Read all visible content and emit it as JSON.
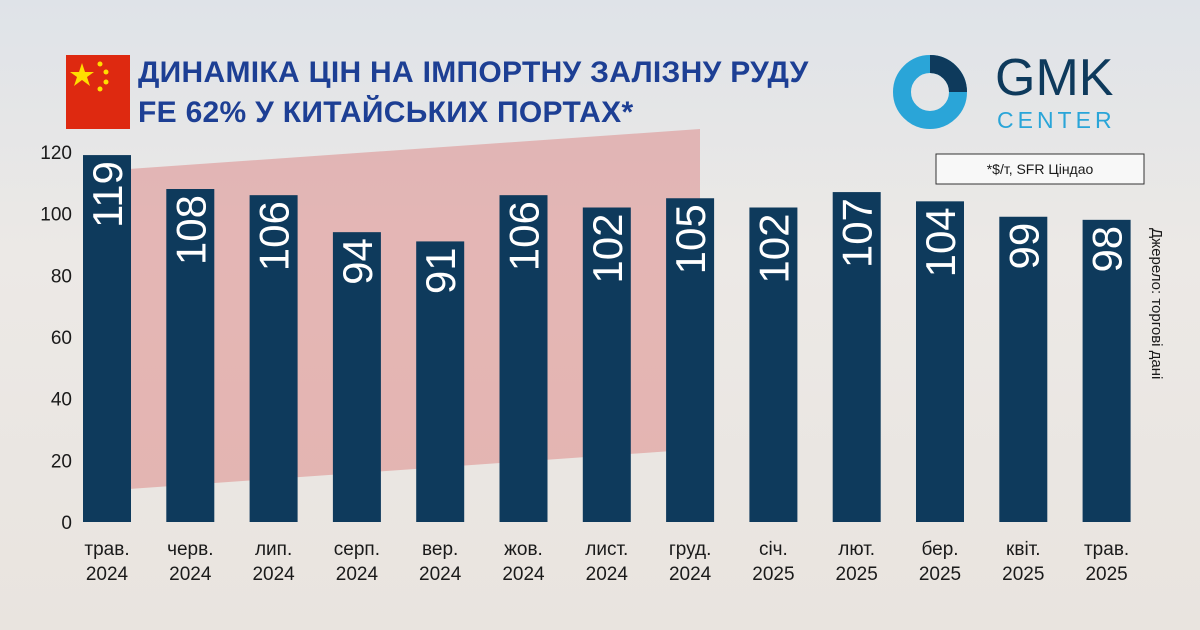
{
  "chart_data": {
    "type": "bar",
    "title": [
      "ДИНАМІКА ЦІН НА ІМПОРТНУ ЗАЛІЗНУ РУДУ",
      "FE 62% У КИТАЙСЬКИХ ПОРТАХ*"
    ],
    "note": "*$/т,  SFR Ціндао",
    "source": "Джерело: торгові дані",
    "logo": [
      "GMK",
      "CENTER"
    ],
    "categories": [
      "трав.\n2024",
      "черв.\n2024",
      "лип.\n2024",
      "серп.\n2024",
      "вер.\n2024",
      "жов.\n2024",
      "лист.\n2024",
      "груд.\n2024",
      "січ.\n2025",
      "лют.\n2025",
      "бер.\n2025",
      "квіт.\n2025",
      "трав.\n2025"
    ],
    "values": [
      119,
      108,
      106,
      94,
      91,
      106,
      102,
      105,
      102,
      107,
      104,
      99,
      98
    ],
    "color": "#0e3a5c",
    "ylim": [
      0,
      120
    ],
    "yticks": [
      0,
      20,
      40,
      60,
      80,
      100,
      120
    ],
    "grid": false
  }
}
